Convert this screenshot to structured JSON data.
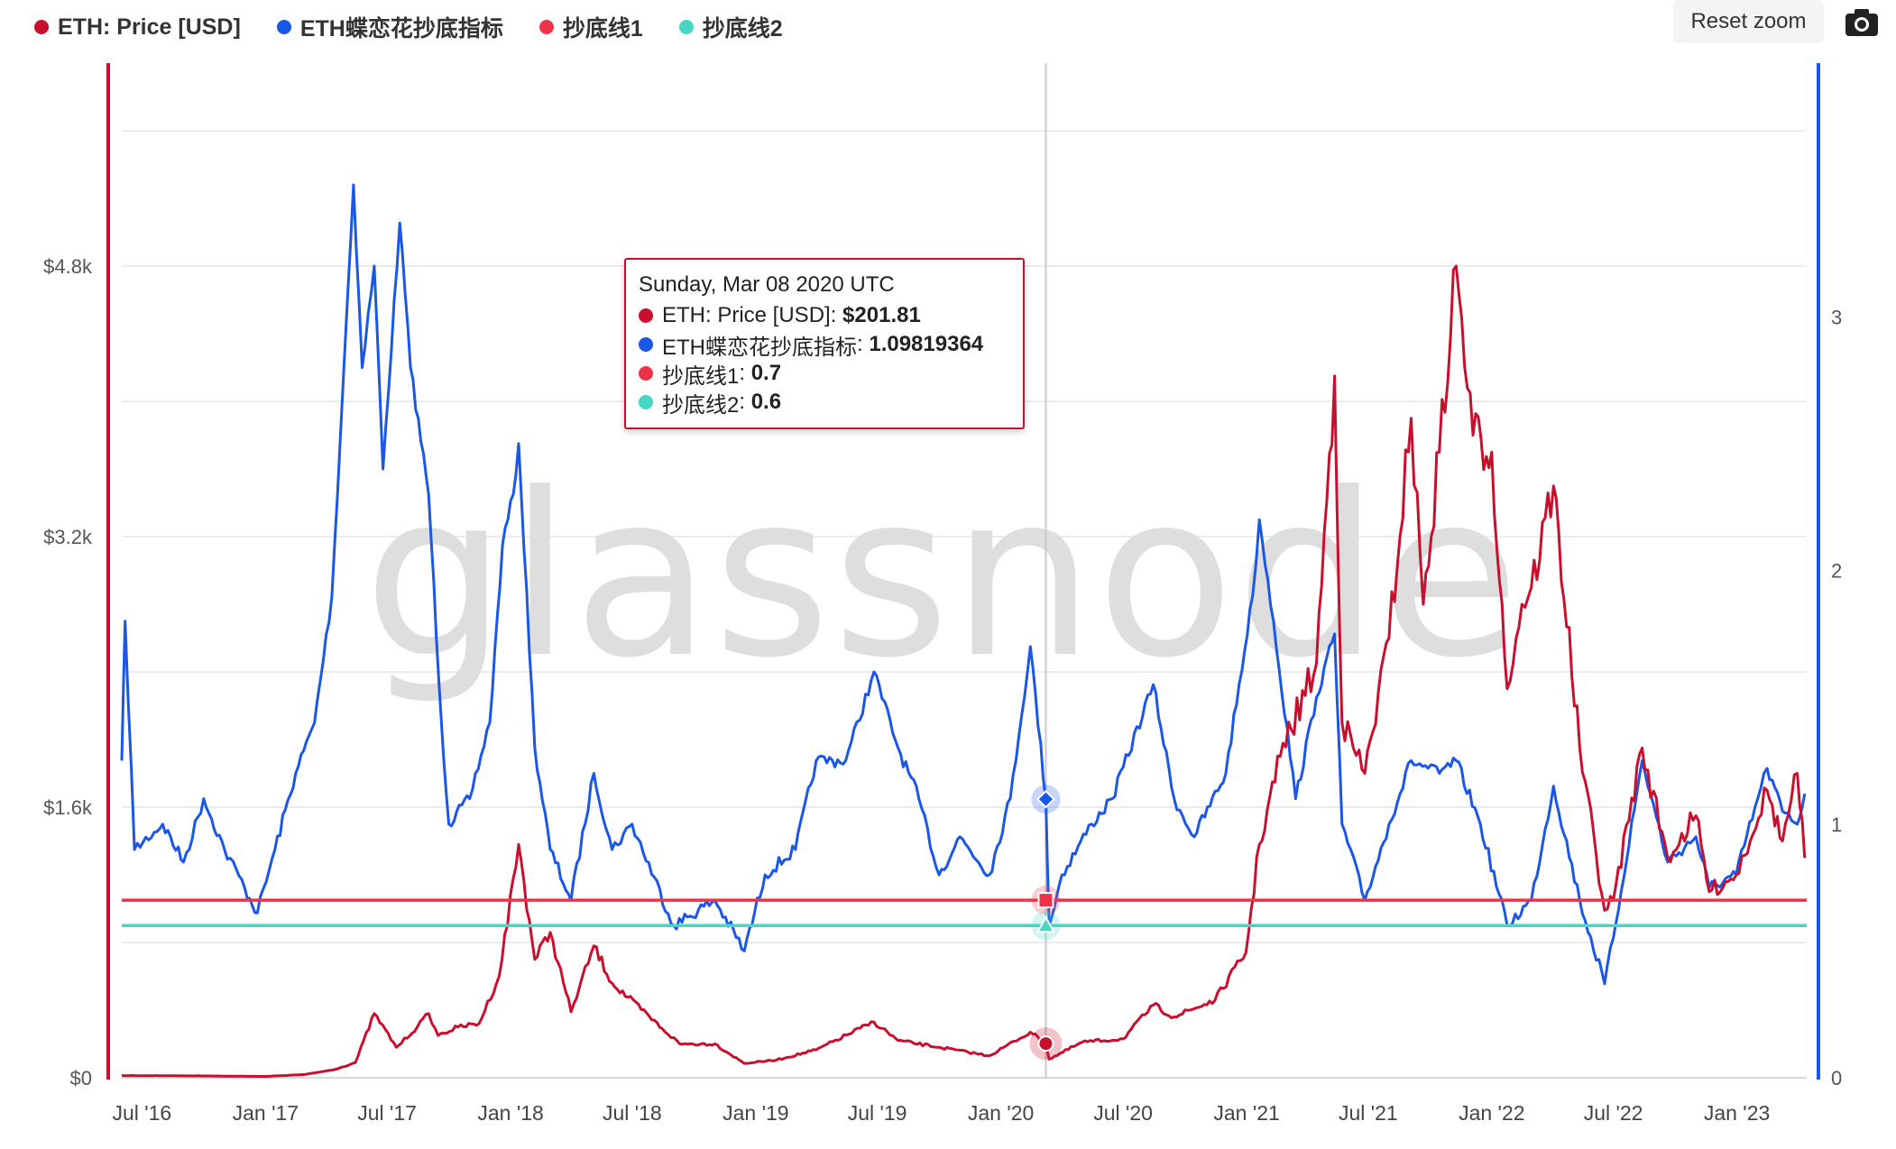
{
  "legend": {
    "price": "ETH: Price [USD]",
    "indicator": "ETH蝶恋花抄底指标",
    "line1": "抄底线1",
    "line2": "抄底线2"
  },
  "toolbar": {
    "reset_zoom": "Reset zoom",
    "camera_icon": "camera-icon"
  },
  "watermark": "glassnode",
  "colors": {
    "price": "#c8102e",
    "indicator": "#1a56e8",
    "line1": "#ee3349",
    "line2": "#46d6c4",
    "grid": "#e6e6e6"
  },
  "tooltip": {
    "date": "Sunday, Mar 08 2020 UTC",
    "rows": [
      {
        "label": "ETH: Price [USD]",
        "value": "$201.81"
      },
      {
        "label": "ETH蝶恋花抄底指标",
        "value": "1.09819364"
      },
      {
        "label": "抄底线1",
        "value": "0.7"
      },
      {
        "label": "抄底线2",
        "value": "0.6"
      }
    ]
  },
  "chart_data": {
    "type": "line",
    "title": "",
    "x_axis": {
      "ticks": [
        "Jul '16",
        "Jan '17",
        "Jul '17",
        "Jan '18",
        "Jul '18",
        "Jan '19",
        "Jul '19",
        "Jan '20",
        "Jul '20",
        "Jan '21",
        "Jul '21",
        "Jan '22",
        "Jul '22",
        "Jan '23"
      ],
      "range": [
        "2016-06-01",
        "2023-04-15"
      ]
    },
    "y_left": {
      "label": "",
      "ticks": [
        "$0",
        "$1.6k",
        "$3.2k",
        "$4.8k"
      ],
      "range": [
        0,
        6000
      ]
    },
    "y_right": {
      "label": "",
      "ticks": [
        "0",
        "1",
        "2",
        "3"
      ],
      "range": [
        0,
        4
      ]
    },
    "grid": true,
    "legend_position": "top-left",
    "crosshair_date": "2020-03-08",
    "series": [
      {
        "name": "ETH: Price [USD]",
        "axis": "left",
        "points": [
          [
            "2016-06-01",
            13
          ],
          [
            "2016-10-01",
            11
          ],
          [
            "2017-01-01",
            8
          ],
          [
            "2017-03-01",
            19
          ],
          [
            "2017-04-15",
            50
          ],
          [
            "2017-05-15",
            90
          ],
          [
            "2017-06-12",
            380
          ],
          [
            "2017-07-15",
            180
          ],
          [
            "2017-08-15",
            300
          ],
          [
            "2017-09-01",
            380
          ],
          [
            "2017-09-15",
            250
          ],
          [
            "2017-10-15",
            300
          ],
          [
            "2017-11-15",
            320
          ],
          [
            "2017-12-15",
            600
          ],
          [
            "2018-01-13",
            1380
          ],
          [
            "2018-02-06",
            700
          ],
          [
            "2018-03-01",
            860
          ],
          [
            "2018-04-01",
            390
          ],
          [
            "2018-05-05",
            780
          ],
          [
            "2018-06-01",
            560
          ],
          [
            "2018-08-15",
            290
          ],
          [
            "2018-09-10",
            200
          ],
          [
            "2018-11-01",
            200
          ],
          [
            "2018-12-15",
            85
          ],
          [
            "2019-02-01",
            105
          ],
          [
            "2019-04-01",
            165
          ],
          [
            "2019-06-26",
            330
          ],
          [
            "2019-08-01",
            220
          ],
          [
            "2019-10-01",
            180
          ],
          [
            "2019-12-15",
            130
          ],
          [
            "2020-02-14",
            270
          ],
          [
            "2020-03-08",
            201.81
          ],
          [
            "2020-03-13",
            110
          ],
          [
            "2020-05-01",
            210
          ],
          [
            "2020-07-01",
            230
          ],
          [
            "2020-08-15",
            430
          ],
          [
            "2020-09-15",
            360
          ],
          [
            "2020-11-15",
            460
          ],
          [
            "2020-12-31",
            740
          ],
          [
            "2021-01-20",
            1380
          ],
          [
            "2021-02-20",
            1900
          ],
          [
            "2021-04-15",
            2450
          ],
          [
            "2021-05-12",
            4150
          ],
          [
            "2021-05-23",
            2100
          ],
          [
            "2021-06-26",
            1800
          ],
          [
            "2021-08-01",
            2600
          ],
          [
            "2021-09-03",
            3900
          ],
          [
            "2021-09-21",
            2800
          ],
          [
            "2021-10-15",
            3700
          ],
          [
            "2021-11-09",
            4800
          ],
          [
            "2021-12-04",
            3800
          ],
          [
            "2022-01-01",
            3700
          ],
          [
            "2022-01-24",
            2300
          ],
          [
            "2022-02-15",
            2800
          ],
          [
            "2022-03-01",
            2900
          ],
          [
            "2022-04-03",
            3500
          ],
          [
            "2022-05-12",
            1950
          ],
          [
            "2022-06-18",
            990
          ],
          [
            "2022-07-01",
            1050
          ],
          [
            "2022-08-13",
            1950
          ],
          [
            "2022-09-20",
            1300
          ],
          [
            "2022-11-01",
            1550
          ],
          [
            "2022-11-21",
            1100
          ],
          [
            "2022-12-31",
            1200
          ],
          [
            "2023-02-15",
            1700
          ],
          [
            "2023-03-10",
            1400
          ],
          [
            "2023-04-01",
            1800
          ],
          [
            "2023-04-12",
            1300
          ]
        ]
      },
      {
        "name": "ETH蝶恋花抄底指标",
        "axis": "right",
        "points": [
          [
            "2016-06-01",
            1.25
          ],
          [
            "2016-06-06",
            1.8
          ],
          [
            "2016-06-20",
            0.9
          ],
          [
            "2016-08-01",
            1.0
          ],
          [
            "2016-09-01",
            0.85
          ],
          [
            "2016-10-01",
            1.1
          ],
          [
            "2016-11-01",
            0.9
          ],
          [
            "2016-12-01",
            0.75
          ],
          [
            "2016-12-20",
            0.65
          ],
          [
            "2017-01-15",
            0.9
          ],
          [
            "2017-02-15",
            1.2
          ],
          [
            "2017-03-15",
            1.4
          ],
          [
            "2017-04-10",
            1.9
          ],
          [
            "2017-05-12",
            3.52
          ],
          [
            "2017-05-25",
            2.8
          ],
          [
            "2017-06-12",
            3.2
          ],
          [
            "2017-06-25",
            2.4
          ],
          [
            "2017-07-20",
            3.37
          ],
          [
            "2017-08-05",
            2.8
          ],
          [
            "2017-09-01",
            2.3
          ],
          [
            "2017-09-20",
            1.4
          ],
          [
            "2017-10-01",
            1.0
          ],
          [
            "2017-11-01",
            1.1
          ],
          [
            "2017-12-01",
            1.4
          ],
          [
            "2017-12-20",
            2.1
          ],
          [
            "2018-01-05",
            2.3
          ],
          [
            "2018-01-13",
            2.5
          ],
          [
            "2018-02-06",
            1.3
          ],
          [
            "2018-03-01",
            0.9
          ],
          [
            "2018-04-01",
            0.7
          ],
          [
            "2018-05-05",
            1.2
          ],
          [
            "2018-06-01",
            0.9
          ],
          [
            "2018-07-01",
            1.0
          ],
          [
            "2018-09-01",
            0.6
          ],
          [
            "2018-11-01",
            0.7
          ],
          [
            "2018-12-15",
            0.5
          ],
          [
            "2019-01-15",
            0.8
          ],
          [
            "2019-03-01",
            0.9
          ],
          [
            "2019-04-01",
            1.25
          ],
          [
            "2019-05-15",
            1.25
          ],
          [
            "2019-06-26",
            1.6
          ],
          [
            "2019-08-01",
            1.3
          ],
          [
            "2019-09-01",
            1.1
          ],
          [
            "2019-10-01",
            0.8
          ],
          [
            "2019-11-01",
            0.95
          ],
          [
            "2019-12-15",
            0.8
          ],
          [
            "2020-01-15",
            1.1
          ],
          [
            "2020-02-14",
            1.7
          ],
          [
            "2020-03-08",
            1.098
          ],
          [
            "2020-03-13",
            0.6
          ],
          [
            "2020-04-01",
            0.8
          ],
          [
            "2020-05-15",
            1.0
          ],
          [
            "2020-06-15",
            1.1
          ],
          [
            "2020-08-15",
            1.55
          ],
          [
            "2020-09-15",
            1.1
          ],
          [
            "2020-10-15",
            0.95
          ],
          [
            "2020-12-01",
            1.2
          ],
          [
            "2021-01-10",
            1.9
          ],
          [
            "2021-01-20",
            2.2
          ],
          [
            "2021-02-10",
            1.8
          ],
          [
            "2021-03-15",
            1.1
          ],
          [
            "2021-04-15",
            1.5
          ],
          [
            "2021-05-12",
            1.75
          ],
          [
            "2021-05-23",
            1.0
          ],
          [
            "2021-06-26",
            0.7
          ],
          [
            "2021-08-01",
            1.0
          ],
          [
            "2021-09-03",
            1.25
          ],
          [
            "2021-10-15",
            1.2
          ],
          [
            "2021-11-09",
            1.25
          ],
          [
            "2021-12-15",
            1.0
          ],
          [
            "2022-01-24",
            0.6
          ],
          [
            "2022-03-01",
            0.7
          ],
          [
            "2022-04-03",
            1.15
          ],
          [
            "2022-05-12",
            0.7
          ],
          [
            "2022-06-18",
            0.37
          ],
          [
            "2022-07-01",
            0.55
          ],
          [
            "2022-08-13",
            1.25
          ],
          [
            "2022-09-20",
            0.85
          ],
          [
            "2022-11-01",
            0.95
          ],
          [
            "2022-11-21",
            0.75
          ],
          [
            "2022-12-31",
            0.8
          ],
          [
            "2023-02-01",
            1.1
          ],
          [
            "2023-02-15",
            1.22
          ],
          [
            "2023-03-10",
            1.05
          ],
          [
            "2023-04-01",
            1.0
          ],
          [
            "2023-04-12",
            1.12
          ]
        ]
      },
      {
        "name": "抄底线1",
        "axis": "right",
        "constant": 0.7
      },
      {
        "name": "抄底线2",
        "axis": "right",
        "constant": 0.6
      }
    ]
  }
}
